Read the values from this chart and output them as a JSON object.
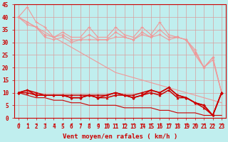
{
  "xlabel": "Vent moyen/en rafales ( km/h )",
  "bg_color": "#c0eeee",
  "grid_color": "#d8a0a0",
  "xlim": [
    -0.5,
    23.5
  ],
  "ylim": [
    0,
    45
  ],
  "yticks": [
    0,
    5,
    10,
    15,
    20,
    25,
    30,
    35,
    40,
    45
  ],
  "xticks": [
    0,
    1,
    2,
    3,
    4,
    5,
    6,
    7,
    8,
    9,
    10,
    11,
    12,
    13,
    14,
    15,
    16,
    17,
    18,
    19,
    20,
    21,
    22,
    23
  ],
  "line_rafales_irreg1": [
    40,
    44,
    38,
    36,
    32,
    34,
    32,
    32,
    36,
    32,
    32,
    36,
    33,
    32,
    36,
    33,
    38,
    33,
    32,
    31,
    27,
    20,
    23,
    10
  ],
  "line_rafales_irreg2": [
    40,
    37,
    36,
    32,
    31,
    32,
    30,
    31,
    31,
    31,
    31,
    32,
    32,
    31,
    33,
    32,
    33,
    31,
    32,
    31,
    25,
    20,
    24,
    10
  ],
  "line_rafales_irreg3": [
    40,
    38,
    36,
    33,
    32,
    33,
    31,
    31,
    33,
    31,
    31,
    34,
    32,
    31,
    34,
    32,
    35,
    32,
    32,
    31,
    26,
    20,
    24,
    10
  ],
  "line_rafales_diag": [
    40,
    38,
    36,
    34,
    32,
    30,
    28,
    26,
    24,
    22,
    20,
    18,
    17,
    16,
    15,
    14,
    13,
    12,
    11,
    10,
    9,
    8,
    7,
    6
  ],
  "line_moyen_irreg1": [
    10,
    11,
    9,
    9,
    9,
    9,
    8,
    8,
    9,
    8,
    9,
    10,
    9,
    8,
    9,
    11,
    10,
    12,
    9,
    8,
    6,
    5,
    1,
    10
  ],
  "line_moyen_irreg2": [
    10,
    10,
    9,
    9,
    9,
    9,
    8,
    8,
    9,
    8,
    8,
    9,
    9,
    8,
    9,
    10,
    9,
    11,
    8,
    8,
    6,
    4,
    1,
    10
  ],
  "line_moyen_irreg3": [
    10,
    11,
    10,
    9,
    9,
    9,
    9,
    9,
    9,
    9,
    9,
    10,
    9,
    9,
    10,
    11,
    10,
    12,
    9,
    8,
    6,
    5,
    1,
    10
  ],
  "line_moyen_diag": [
    10,
    9,
    8,
    8,
    7,
    7,
    6,
    6,
    5,
    5,
    5,
    5,
    4,
    4,
    4,
    4,
    3,
    3,
    2,
    2,
    2,
    1,
    1,
    1
  ],
  "color_rafales": "#f09898",
  "color_moyen": "#cc0000",
  "lw": 0.8,
  "ms": 2.0,
  "font_size_xlabel": 6.5,
  "font_size_ticks": 5.5,
  "arrows_x": [
    0,
    1,
    2,
    3,
    4,
    5,
    6,
    7,
    8,
    9,
    10,
    11,
    12,
    13,
    14,
    15,
    16,
    17,
    18,
    19,
    20,
    21,
    22,
    23
  ],
  "arrow_angles": [
    225,
    225,
    270,
    270,
    315,
    270,
    270,
    270,
    270,
    315,
    270,
    315,
    270,
    270,
    270,
    270,
    225,
    270,
    270,
    225,
    270,
    270,
    315,
    270
  ]
}
